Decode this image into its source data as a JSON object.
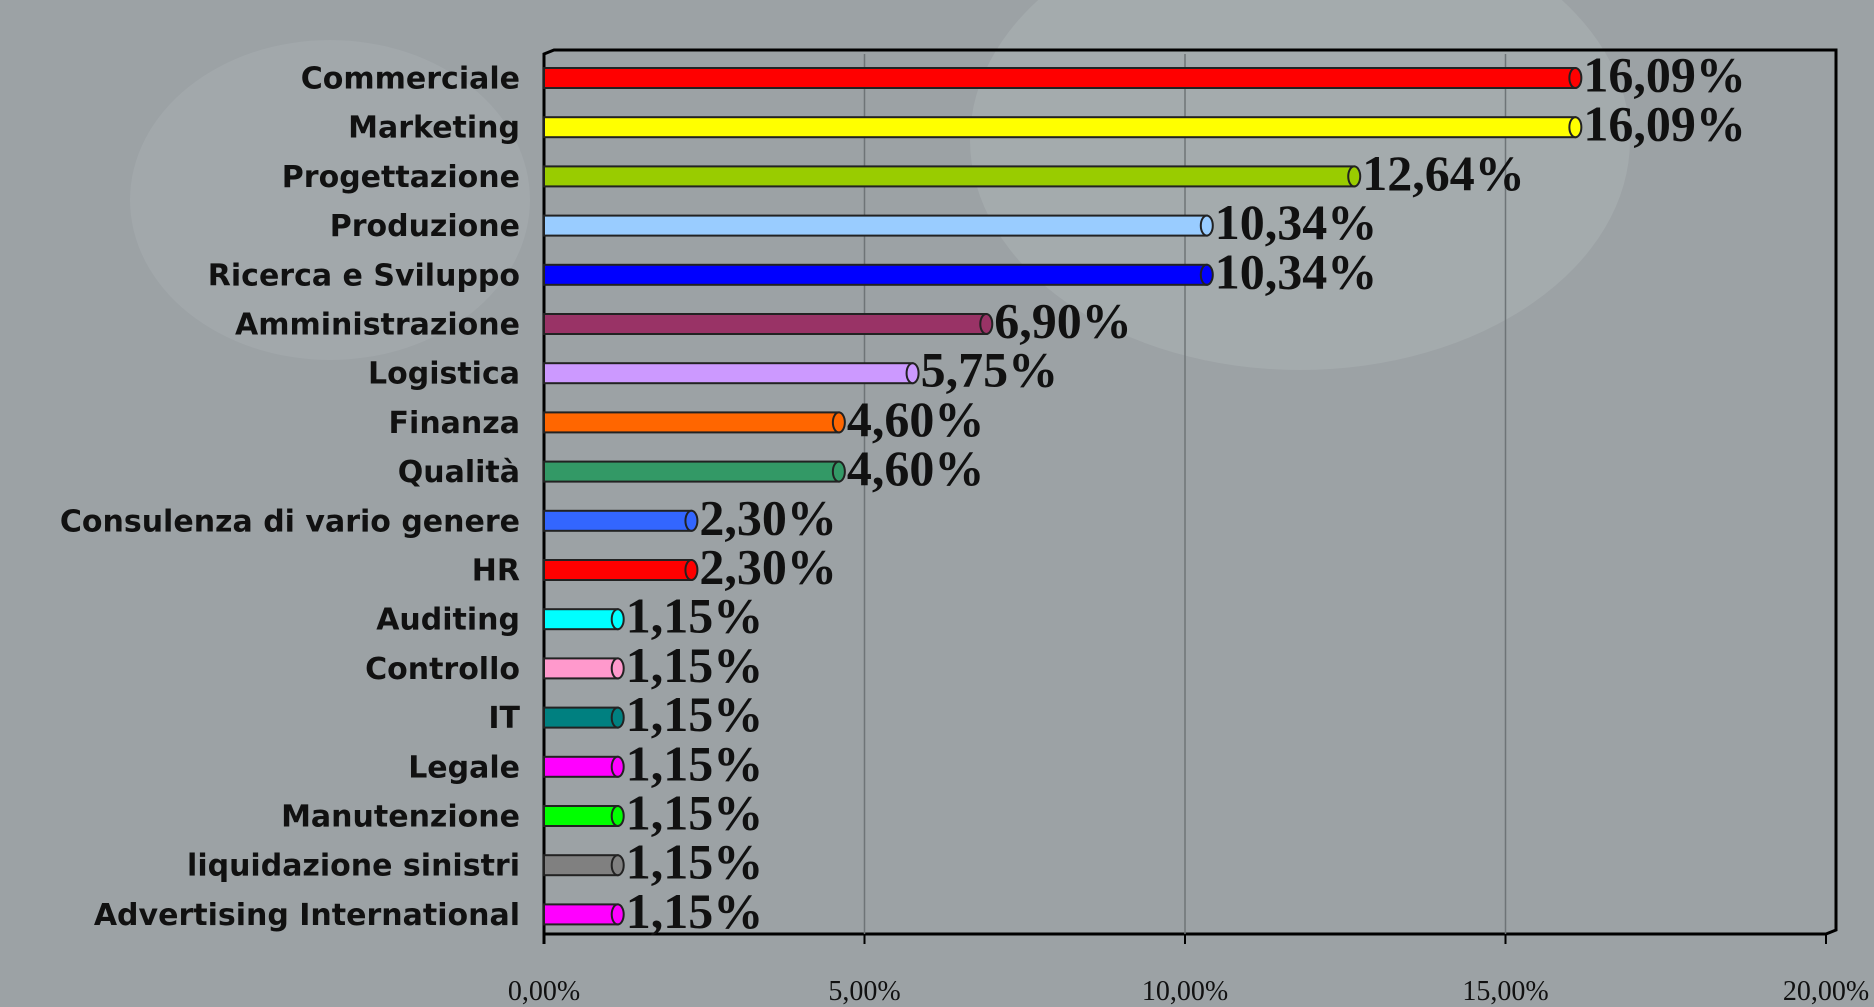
{
  "chart_data": {
    "type": "bar",
    "orientation": "horizontal",
    "categories": [
      "Commerciale",
      "Marketing",
      "Progettazione",
      "Produzione",
      "Ricerca e Sviluppo",
      "Amministrazione",
      "Logistica",
      "Finanza",
      "Qualità",
      "Consulenza di vario genere",
      "HR",
      "Auditing",
      "Controllo",
      "IT",
      "Legale",
      "Manutenzione",
      "liquidazione sinistri",
      "Advertising International"
    ],
    "values": [
      16.09,
      16.09,
      12.64,
      10.34,
      10.34,
      6.9,
      5.75,
      4.6,
      4.6,
      2.3,
      2.3,
      1.15,
      1.15,
      1.15,
      1.15,
      1.15,
      1.15,
      1.15
    ],
    "value_labels": [
      "16,09%",
      "16,09%",
      "12,64%",
      "10,34%",
      "10,34%",
      "6,90%",
      "5,75%",
      "4,60%",
      "4,60%",
      "2,30%",
      "2,30%",
      "1,15%",
      "1,15%",
      "1,15%",
      "1,15%",
      "1,15%",
      "1,15%",
      "1,15%"
    ],
    "colors": [
      "#ff0000",
      "#ffff00",
      "#99cc00",
      "#99ccff",
      "#0000ff",
      "#993366",
      "#cc99ff",
      "#ff6600",
      "#339966",
      "#3366ff",
      "#ff0000",
      "#00ffff",
      "#ff99cc",
      "#008080",
      "#ff00ff",
      "#00ff00",
      "#808080",
      "#ff00ff"
    ],
    "xlim": [
      0,
      20
    ],
    "xticks": [
      {
        "value": 0,
        "label": "0,00%"
      },
      {
        "value": 5,
        "label": "5,00%"
      },
      {
        "value": 10,
        "label": "10,00%"
      },
      {
        "value": 15,
        "label": "15,00%"
      },
      {
        "value": 20,
        "label": "20,00%"
      }
    ],
    "grid": true
  }
}
